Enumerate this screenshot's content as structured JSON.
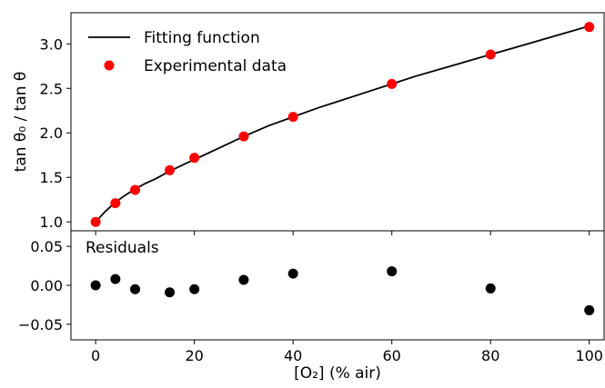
{
  "chart_data": [
    {
      "type": "scatter",
      "ylabel": "tan θ₀ / tan θ",
      "ylim": [
        0.9,
        3.35
      ],
      "xlim": [
        -5,
        103
      ],
      "yticks": [
        "1.0",
        "1.5",
        "2.0",
        "2.5",
        "3.0"
      ],
      "legend": {
        "placement": "top-left",
        "entries": [
          "Fitting function",
          "Experimental data"
        ]
      },
      "series": [
        {
          "name": "Experimental data",
          "color": "#ff0000",
          "x": [
            0,
            4,
            8,
            15,
            20,
            30,
            40,
            60,
            80,
            100
          ],
          "y": [
            1.0,
            1.21,
            1.36,
            1.58,
            1.72,
            1.96,
            2.18,
            2.55,
            2.88,
            3.19
          ]
        },
        {
          "name": "Fitting function",
          "color": "#000000",
          "style": "line",
          "x": [
            0,
            2,
            4,
            6,
            8,
            10,
            12,
            15,
            18,
            20,
            25,
            30,
            35,
            40,
            45,
            50,
            55,
            60,
            65,
            70,
            75,
            80,
            85,
            90,
            95,
            100
          ],
          "y": [
            1.0,
            1.12,
            1.22,
            1.3,
            1.37,
            1.43,
            1.48,
            1.57,
            1.65,
            1.7,
            1.83,
            1.96,
            2.08,
            2.18,
            2.28,
            2.37,
            2.46,
            2.55,
            2.64,
            2.72,
            2.8,
            2.88,
            2.96,
            3.04,
            3.12,
            3.2
          ]
        }
      ]
    },
    {
      "type": "scatter",
      "annotation": "Residuals",
      "xlabel": "[O₂] (% air)",
      "ylim": [
        -0.07,
        0.07
      ],
      "xlim": [
        -5,
        103
      ],
      "yticks": [
        "0.05",
        "0.00",
        "−0.05"
      ],
      "xticks": [
        "0",
        "20",
        "40",
        "60",
        "80",
        "100"
      ],
      "series": [
        {
          "color": "#000000",
          "x": [
            0,
            4,
            8,
            15,
            20,
            30,
            40,
            60,
            80,
            100
          ],
          "y": [
            0.0,
            0.008,
            -0.005,
            -0.009,
            -0.005,
            0.007,
            0.015,
            0.018,
            -0.004,
            -0.032
          ]
        }
      ]
    }
  ]
}
